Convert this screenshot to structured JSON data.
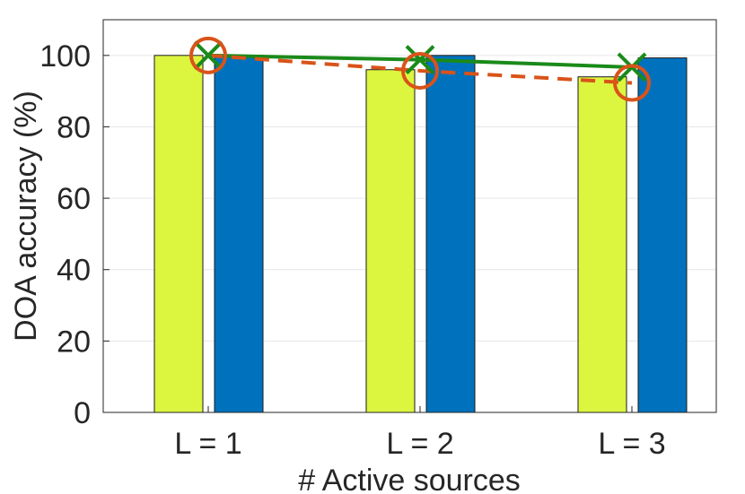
{
  "chart_data": {
    "type": "bar",
    "title": "",
    "xlabel": "# Active sources",
    "ylabel": "DOA accuracy (%)",
    "categories": [
      "L = 1",
      "L = 2",
      "L = 3"
    ],
    "ylim": [
      0,
      110
    ],
    "yticks": [
      0,
      20,
      40,
      60,
      80,
      100
    ],
    "grid": true,
    "legend": "none",
    "bar_series": [
      {
        "values": [
          100,
          96,
          94
        ],
        "color": "#dcf53f"
      },
      {
        "values": [
          100,
          100,
          99.3
        ],
        "color": "#0072bd"
      }
    ],
    "line_series": [
      {
        "values": [
          100,
          98.8,
          96.7
        ],
        "color": "#1a8a1a",
        "style": "solid",
        "marker": "x"
      },
      {
        "values": [
          100,
          95.7,
          92.3
        ],
        "color": "#d95319",
        "style": "dashed",
        "marker": "o"
      }
    ]
  }
}
